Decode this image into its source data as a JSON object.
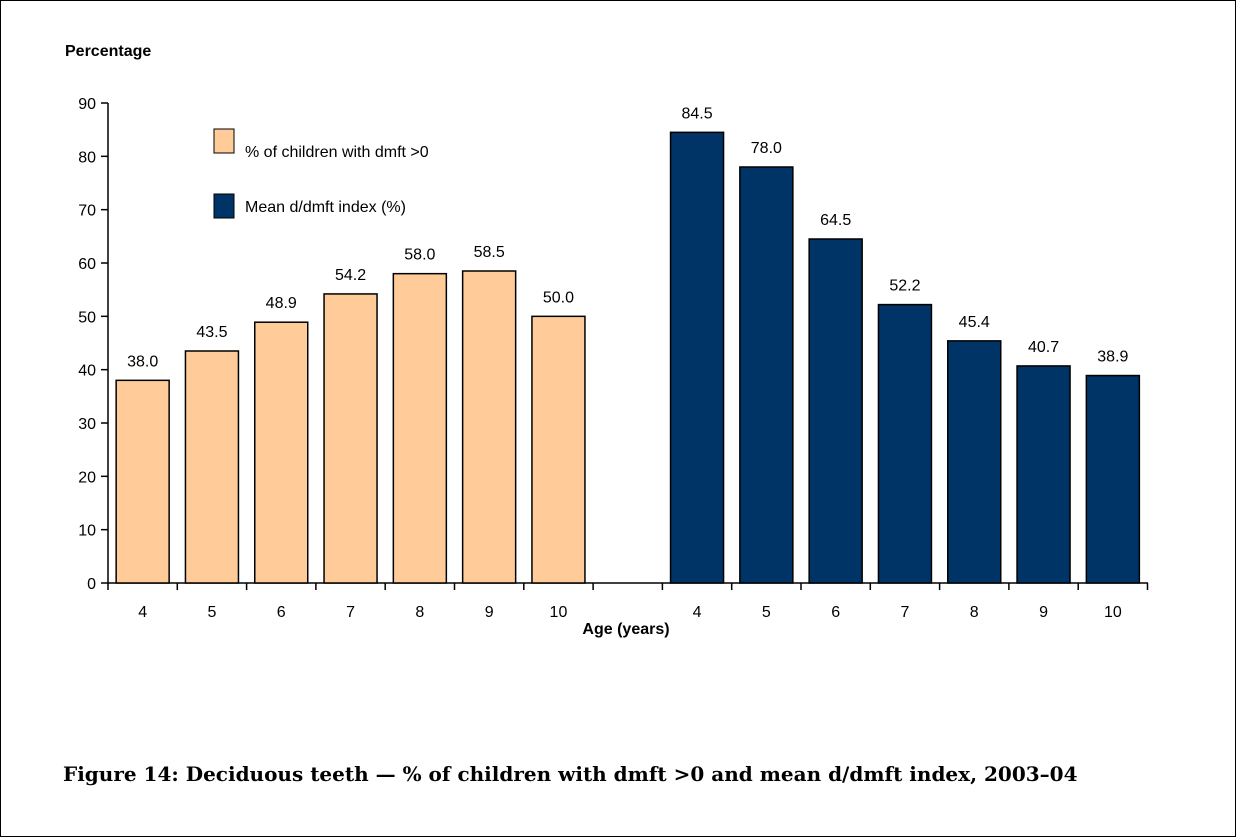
{
  "caption": "Figure 14: Deciduous teeth — % of children with dmft >0 and mean d/dmft index, 2003–04",
  "chart_data": {
    "type": "bar",
    "title": "",
    "ylabel": "Percentage",
    "xlabel": "Age (years)",
    "ylim": [
      0,
      90
    ],
    "yticks": [
      0,
      10,
      20,
      30,
      40,
      50,
      60,
      70,
      80,
      90
    ],
    "grid": false,
    "legend_position": "top-left",
    "series": [
      {
        "name": "% of children with dmft >0",
        "color": "#FFCC99",
        "categories": [
          "4",
          "5",
          "6",
          "7",
          "8",
          "9",
          "10"
        ],
        "values": [
          38.0,
          43.5,
          48.9,
          54.2,
          58.0,
          58.5,
          50.0
        ],
        "labels": [
          "38.0",
          "43.5",
          "48.9",
          "54.2",
          "58.0",
          "58.5",
          "50.0"
        ]
      },
      {
        "name": "Mean d/dmft index (%)",
        "color": "#003366",
        "categories": [
          "4",
          "5",
          "6",
          "7",
          "8",
          "9",
          "10"
        ],
        "values": [
          84.5,
          78.0,
          64.5,
          52.2,
          45.4,
          40.7,
          38.9
        ],
        "labels": [
          "84.5",
          "78.0",
          "64.5",
          "52.2",
          "45.4",
          "40.7",
          "38.9"
        ]
      }
    ]
  }
}
